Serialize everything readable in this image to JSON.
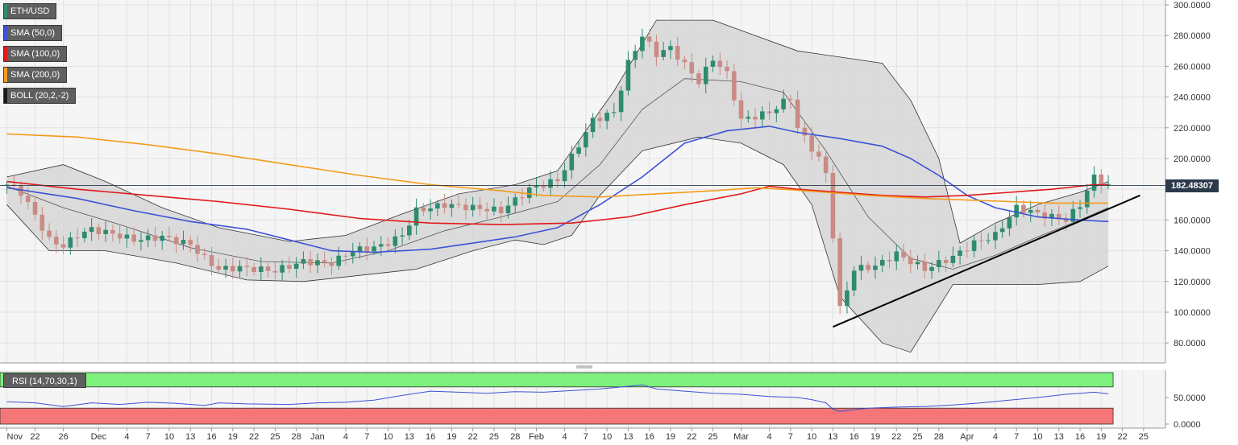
{
  "legend": {
    "pair": "ETH/USD",
    "sma50": "SMA (50,0)",
    "sma100": "SMA (100,0)",
    "sma200": "SMA (200,0)",
    "boll": "BOLL (20,2,-2)",
    "rsi": "RSI (14,70,30,1)"
  },
  "colors": {
    "bull": "#2e8b6e",
    "bear": "#c98b83",
    "sma50": "#3d52d5",
    "sma100": "#e0191b",
    "sma200": "#f49b1b",
    "band_fill": "#d6d6d6",
    "rsi": "#3d52d5",
    "overbought": "#7df07d",
    "oversold": "#f47676"
  },
  "current_price": "182.48307",
  "chart_data": [
    {
      "type": "candlestick",
      "title": "",
      "ylim": [
        68,
        300
      ],
      "y_ticks": [
        "300.0000",
        "280.0000",
        "260.0000",
        "240.0000",
        "220.0000",
        "200.0000",
        "180.0000",
        "160.0000",
        "140.0000",
        "120.0000",
        "100.0000",
        "80.0000"
      ],
      "y_tick_values": [
        300,
        280,
        260,
        240,
        220,
        200,
        180,
        160,
        140,
        120,
        100,
        80
      ],
      "x_ticks": [
        "Nov",
        "22",
        "26",
        "Dec",
        "4",
        "7",
        "10",
        "13",
        "16",
        "19",
        "22",
        "25",
        "28",
        "Jan",
        "4",
        "7",
        "10",
        "13",
        "16",
        "19",
        "22",
        "25",
        "28",
        "Feb",
        "4",
        "7",
        "10",
        "13",
        "16",
        "19",
        "22",
        "25",
        "Mar",
        "4",
        "7",
        "10",
        "13",
        "16",
        "19",
        "22",
        "25",
        "28",
        "Apr",
        "4",
        "7",
        "10",
        "13",
        "16",
        "19",
        "22",
        "25"
      ],
      "x_tick_days": [
        0,
        4,
        8,
        13,
        17,
        20,
        23,
        26,
        29,
        32,
        35,
        38,
        41,
        44,
        48,
        51,
        54,
        57,
        60,
        63,
        66,
        69,
        72,
        75,
        79,
        82,
        85,
        88,
        91,
        94,
        97,
        100,
        104,
        108,
        111,
        114,
        117,
        120,
        123,
        126,
        129,
        132,
        136,
        140,
        143,
        146,
        149,
        152,
        155,
        158,
        161
      ],
      "close_anchors": [
        [
          0,
          183
        ],
        [
          2,
          178
        ],
        [
          4,
          163
        ],
        [
          6,
          147
        ],
        [
          8,
          143
        ],
        [
          10,
          150
        ],
        [
          12,
          154
        ],
        [
          15,
          151
        ],
        [
          18,
          147
        ],
        [
          22,
          149
        ],
        [
          26,
          144
        ],
        [
          28,
          135
        ],
        [
          30,
          128
        ],
        [
          33,
          129
        ],
        [
          38,
          127
        ],
        [
          42,
          133
        ],
        [
          46,
          132
        ],
        [
          49,
          140
        ],
        [
          53,
          143
        ],
        [
          56,
          150
        ],
        [
          58,
          166
        ],
        [
          62,
          170
        ],
        [
          66,
          168
        ],
        [
          70,
          166
        ],
        [
          74,
          180
        ],
        [
          78,
          186
        ],
        [
          80,
          201
        ],
        [
          83,
          225
        ],
        [
          86,
          230
        ],
        [
          88,
          262
        ],
        [
          90,
          280
        ],
        [
          92,
          268
        ],
        [
          94,
          272
        ],
        [
          98,
          250
        ],
        [
          100,
          265
        ],
        [
          102,
          255
        ],
        [
          104,
          225
        ],
        [
          108,
          230
        ],
        [
          111,
          240
        ],
        [
          112,
          220
        ],
        [
          115,
          200
        ],
        [
          116,
          190
        ],
        [
          117,
          150
        ],
        [
          118,
          102
        ],
        [
          120,
          128
        ],
        [
          123,
          130
        ],
        [
          126,
          138
        ],
        [
          130,
          128
        ],
        [
          134,
          136
        ],
        [
          137,
          145
        ],
        [
          140,
          150
        ],
        [
          143,
          168
        ],
        [
          147,
          163
        ],
        [
          150,
          160
        ],
        [
          152,
          170
        ],
        [
          154,
          188
        ],
        [
          156,
          182
        ]
      ],
      "trendline": {
        "start": [
          "Mar 13",
          90.5
        ],
        "end": [
          "Apr 25",
          176
        ]
      },
      "bollinger_upper": [
        [
          0,
          188
        ],
        [
          8,
          196
        ],
        [
          14,
          185
        ],
        [
          22,
          168
        ],
        [
          30,
          155
        ],
        [
          40,
          146
        ],
        [
          48,
          150
        ],
        [
          56,
          164
        ],
        [
          64,
          177
        ],
        [
          72,
          183
        ],
        [
          78,
          192
        ],
        [
          86,
          244
        ],
        [
          92,
          290
        ],
        [
          100,
          290
        ],
        [
          106,
          280
        ],
        [
          112,
          270
        ],
        [
          118,
          266
        ],
        [
          124,
          262
        ],
        [
          128,
          238
        ],
        [
          132,
          200
        ],
        [
          135,
          145
        ],
        [
          140,
          158
        ],
        [
          146,
          170
        ],
        [
          152,
          178
        ],
        [
          156,
          185
        ]
      ],
      "bollinger_mid": [
        [
          0,
          182
        ],
        [
          8,
          168
        ],
        [
          16,
          157
        ],
        [
          26,
          142
        ],
        [
          36,
          133
        ],
        [
          46,
          132
        ],
        [
          54,
          140
        ],
        [
          62,
          153
        ],
        [
          70,
          162
        ],
        [
          78,
          172
        ],
        [
          84,
          196
        ],
        [
          90,
          232
        ],
        [
          96,
          252
        ],
        [
          104,
          250
        ],
        [
          110,
          243
        ],
        [
          116,
          205
        ],
        [
          122,
          162
        ],
        [
          128,
          135
        ],
        [
          134,
          128
        ],
        [
          140,
          137
        ],
        [
          146,
          149
        ],
        [
          152,
          160
        ],
        [
          156,
          168
        ]
      ],
      "bollinger_lower": [
        [
          0,
          170
        ],
        [
          6,
          140
        ],
        [
          14,
          140
        ],
        [
          24,
          132
        ],
        [
          34,
          121
        ],
        [
          42,
          120
        ],
        [
          50,
          124
        ],
        [
          58,
          128
        ],
        [
          66,
          140
        ],
        [
          72,
          147
        ],
        [
          76,
          144
        ],
        [
          80,
          150
        ],
        [
          84,
          176
        ],
        [
          90,
          205
        ],
        [
          98,
          214
        ],
        [
          104,
          210
        ],
        [
          110,
          196
        ],
        [
          114,
          170
        ],
        [
          118,
          110
        ],
        [
          124,
          80
        ],
        [
          128,
          74
        ],
        [
          134,
          118
        ],
        [
          140,
          118
        ],
        [
          146,
          118
        ],
        [
          152,
          120
        ],
        [
          156,
          130
        ]
      ],
      "series": [
        {
          "name": "SMA (50,0)",
          "points": [
            [
              0,
              181
            ],
            [
              10,
              174
            ],
            [
              18,
              166
            ],
            [
              26,
              159
            ],
            [
              34,
              154
            ],
            [
              40,
              147
            ],
            [
              46,
              140
            ],
            [
              52,
              139
            ],
            [
              60,
              141
            ],
            [
              66,
              145
            ],
            [
              72,
              149
            ],
            [
              78,
              155
            ],
            [
              84,
              170
            ],
            [
              90,
              188
            ],
            [
              96,
              210
            ],
            [
              102,
              218
            ],
            [
              108,
              221
            ],
            [
              112,
              217
            ],
            [
              118,
              213
            ],
            [
              124,
              208
            ],
            [
              128,
              200
            ],
            [
              132,
              189
            ],
            [
              136,
              176
            ],
            [
              140,
              168
            ],
            [
              146,
              162
            ],
            [
              152,
              160
            ],
            [
              156,
              159
            ]
          ]
        },
        {
          "name": "SMA (100,0)",
          "points": [
            [
              0,
              185
            ],
            [
              10,
              180
            ],
            [
              20,
              176
            ],
            [
              30,
              172
            ],
            [
              40,
              167
            ],
            [
              50,
              161
            ],
            [
              60,
              158
            ],
            [
              70,
              157
            ],
            [
              80,
              158
            ],
            [
              88,
              162
            ],
            [
              96,
              170
            ],
            [
              104,
              177
            ],
            [
              108,
              182
            ],
            [
              112,
              180
            ],
            [
              118,
              178
            ],
            [
              124,
              176
            ],
            [
              130,
              175
            ],
            [
              136,
              176
            ],
            [
              142,
              178
            ],
            [
              148,
              180
            ],
            [
              154,
              183
            ],
            [
              156,
              183
            ]
          ]
        },
        {
          "name": "SMA (200,0)",
          "points": [
            [
              0,
              216
            ],
            [
              10,
              214
            ],
            [
              20,
              209
            ],
            [
              30,
              203
            ],
            [
              40,
              196
            ],
            [
              50,
              189
            ],
            [
              60,
              183
            ],
            [
              70,
              179
            ],
            [
              76,
              176
            ],
            [
              84,
              175
            ],
            [
              92,
              177
            ],
            [
              100,
              179
            ],
            [
              106,
              181
            ],
            [
              110,
              180
            ],
            [
              116,
              178
            ],
            [
              122,
              176
            ],
            [
              130,
              174
            ],
            [
              136,
              173
            ],
            [
              142,
              172
            ],
            [
              148,
              171
            ],
            [
              156,
              171
            ]
          ]
        }
      ]
    },
    {
      "type": "line",
      "title": "",
      "ylim": [
        0,
        100
      ],
      "y_ticks": [
        "50.0000",
        "0.0000"
      ],
      "y_tick_values": [
        50,
        0
      ],
      "overbought": 70,
      "oversold": 30,
      "series": [
        {
          "name": "RSI (14,70,30,1)",
          "points": [
            [
              0,
              42
            ],
            [
              4,
              40
            ],
            [
              8,
              33
            ],
            [
              12,
              40
            ],
            [
              16,
              37
            ],
            [
              20,
              41
            ],
            [
              24,
              39
            ],
            [
              28,
              35
            ],
            [
              30,
              40
            ],
            [
              34,
              38
            ],
            [
              40,
              37
            ],
            [
              44,
              40
            ],
            [
              48,
              41
            ],
            [
              52,
              45
            ],
            [
              56,
              54
            ],
            [
              60,
              62
            ],
            [
              64,
              60
            ],
            [
              68,
              58
            ],
            [
              72,
              61
            ],
            [
              76,
              60
            ],
            [
              80,
              63
            ],
            [
              84,
              66
            ],
            [
              88,
              71
            ],
            [
              90,
              74
            ],
            [
              92,
              66
            ],
            [
              96,
              62
            ],
            [
              100,
              58
            ],
            [
              104,
              56
            ],
            [
              108,
              52
            ],
            [
              112,
              50
            ],
            [
              114,
              46
            ],
            [
              116,
              40
            ],
            [
              117,
              28
            ],
            [
              118,
              24
            ],
            [
              122,
              30
            ],
            [
              126,
              32
            ],
            [
              130,
              33
            ],
            [
              134,
              36
            ],
            [
              138,
              40
            ],
            [
              142,
              45
            ],
            [
              146,
              50
            ],
            [
              150,
              56
            ],
            [
              152,
              58
            ],
            [
              154,
              60
            ],
            [
              156,
              57
            ]
          ]
        }
      ]
    }
  ]
}
